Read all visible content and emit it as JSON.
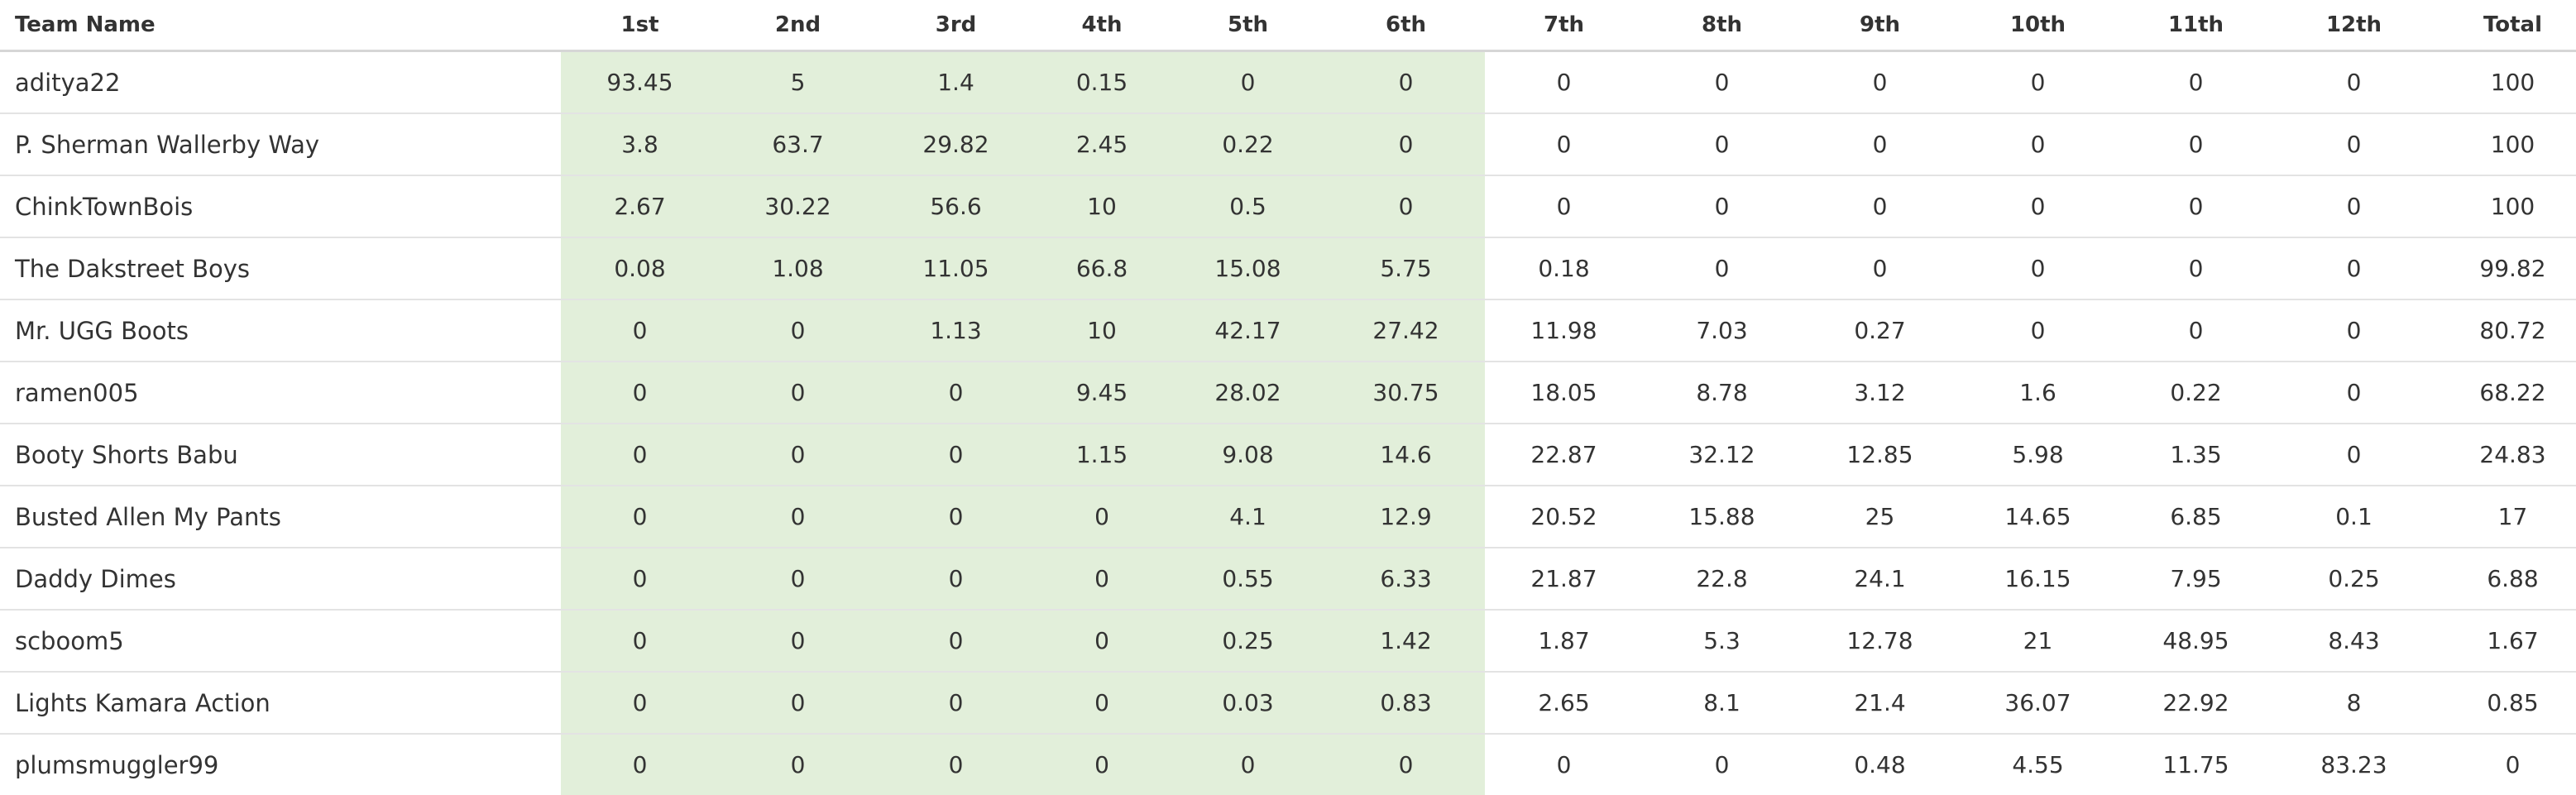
{
  "table": {
    "headers": [
      "Team Name",
      "1st",
      "2nd",
      "3rd",
      "4th",
      "5th",
      "6th",
      "7th",
      "8th",
      "9th",
      "10th",
      "11th",
      "12th",
      "Total"
    ],
    "highlight_color": "#e2efda",
    "rows": [
      [
        "aditya22",
        "93.45",
        "5",
        "1.4",
        "0.15",
        "0",
        "0",
        "0",
        "0",
        "0",
        "0",
        "0",
        "0",
        "100"
      ],
      [
        "P. Sherman Wallerby Way",
        "3.8",
        "63.7",
        "29.82",
        "2.45",
        "0.22",
        "0",
        "0",
        "0",
        "0",
        "0",
        "0",
        "0",
        "100"
      ],
      [
        "ChinkTownBois",
        "2.67",
        "30.22",
        "56.6",
        "10",
        "0.5",
        "0",
        "0",
        "0",
        "0",
        "0",
        "0",
        "0",
        "100"
      ],
      [
        "The Dakstreet Boys",
        "0.08",
        "1.08",
        "11.05",
        "66.8",
        "15.08",
        "5.75",
        "0.18",
        "0",
        "0",
        "0",
        "0",
        "0",
        "99.82"
      ],
      [
        "Mr. UGG Boots",
        "0",
        "0",
        "1.13",
        "10",
        "42.17",
        "27.42",
        "11.98",
        "7.03",
        "0.27",
        "0",
        "0",
        "0",
        "80.72"
      ],
      [
        "ramen005",
        "0",
        "0",
        "0",
        "9.45",
        "28.02",
        "30.75",
        "18.05",
        "8.78",
        "3.12",
        "1.6",
        "0.22",
        "0",
        "68.22"
      ],
      [
        "Booty Shorts Babu",
        "0",
        "0",
        "0",
        "1.15",
        "9.08",
        "14.6",
        "22.87",
        "32.12",
        "12.85",
        "5.98",
        "1.35",
        "0",
        "24.83"
      ],
      [
        "Busted Allen My Pants",
        "0",
        "0",
        "0",
        "0",
        "4.1",
        "12.9",
        "20.52",
        "15.88",
        "25",
        "14.65",
        "6.85",
        "0.1",
        "17"
      ],
      [
        "Daddy Dimes",
        "0",
        "0",
        "0",
        "0",
        "0.55",
        "6.33",
        "21.87",
        "22.8",
        "24.1",
        "16.15",
        "7.95",
        "0.25",
        "6.88"
      ],
      [
        "scboom5",
        "0",
        "0",
        "0",
        "0",
        "0.25",
        "1.42",
        "1.87",
        "5.3",
        "12.78",
        "21",
        "48.95",
        "8.43",
        "1.67"
      ],
      [
        "Lights Kamara Action",
        "0",
        "0",
        "0",
        "0",
        "0.03",
        "0.83",
        "2.65",
        "8.1",
        "21.4",
        "36.07",
        "22.92",
        "8",
        "0.85"
      ],
      [
        "plumsmuggler99",
        "0",
        "0",
        "0",
        "0",
        "0",
        "0",
        "0",
        "0",
        "0.48",
        "4.55",
        "11.75",
        "83.23",
        "0"
      ]
    ]
  }
}
